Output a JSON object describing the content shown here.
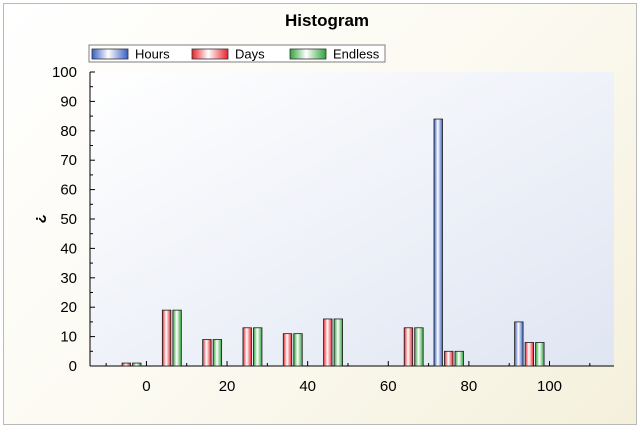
{
  "chart_data": {
    "type": "bar",
    "title": "Histogram",
    "xlabel": "",
    "ylabel": "?",
    "ylim": [
      0,
      100
    ],
    "xlim": [
      -14,
      116
    ],
    "yticks": [
      "0",
      "10",
      "20",
      "30",
      "40",
      "50",
      "60",
      "70",
      "80",
      "90",
      "100"
    ],
    "xticks": [
      "0",
      "20",
      "40",
      "60",
      "80",
      "100"
    ],
    "categories": [
      "-5",
      "5",
      "15",
      "25",
      "35",
      "45",
      "55",
      "65",
      "75",
      "85",
      "95"
    ],
    "series": [
      {
        "name": "Hours",
        "color": "#3a5fc4",
        "values": [
          0,
          0,
          0,
          0,
          0,
          0,
          0,
          0,
          84,
          0,
          15
        ]
      },
      {
        "name": "Days",
        "color": "#e8242c",
        "values": [
          1,
          19,
          9,
          13,
          11,
          16,
          0,
          13,
          5,
          0,
          8
        ]
      },
      {
        "name": "Endless",
        "color": "#2fa33a",
        "values": [
          1,
          19,
          9,
          13,
          11,
          16,
          0,
          13,
          5,
          0,
          8
        ]
      }
    ],
    "legend_position": "top",
    "grid": false
  }
}
